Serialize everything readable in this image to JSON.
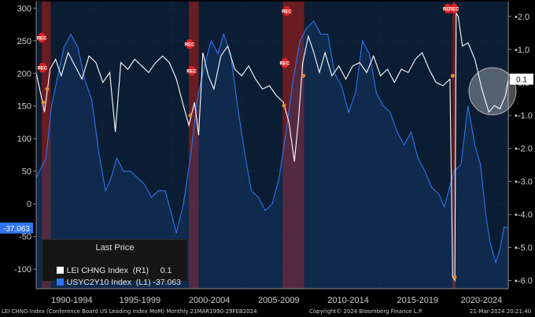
{
  "chart_data": {
    "type": "line",
    "left_axis": {
      "ticks": [
        300,
        250,
        200,
        150,
        100,
        50,
        0,
        -50,
        -100
      ],
      "ylim": [
        -130,
        310
      ]
    },
    "right_axis": {
      "ticks": [
        2.0,
        1.0,
        0.0,
        -1.0,
        -2.0,
        -3.0,
        -4.0,
        -5.0,
        -6.0
      ],
      "ylim": [
        -6.25,
        2.45
      ]
    },
    "x_period_labels": [
      "1990-1994",
      "1995-1999",
      "2000-2004",
      "2005-2009",
      "2010-2014",
      "2015-2019",
      "2020-2024"
    ],
    "x_range": [
      1990.2,
      2024.2
    ],
    "recession_bands": [
      [
        1990.6,
        1991.25
      ],
      [
        2001.2,
        2001.9
      ],
      [
        2007.95,
        2009.5
      ],
      [
        2020.17,
        2020.42
      ]
    ],
    "recession_label": "REC",
    "series": [
      {
        "name": "LEI CHNG Index (R1)",
        "axis": "right",
        "color": "#ffffff",
        "last_value": "0.1",
        "points": [
          [
            1990.2,
            0.3
          ],
          [
            1990.8,
            -0.9
          ],
          [
            1991.2,
            0.4
          ],
          [
            1991.6,
            0.7
          ],
          [
            1992.0,
            0.2
          ],
          [
            1992.5,
            0.9
          ],
          [
            1993.0,
            0.5
          ],
          [
            1993.5,
            0.1
          ],
          [
            1994.0,
            0.8
          ],
          [
            1994.5,
            0.6
          ],
          [
            1995.0,
            0.0
          ],
          [
            1995.5,
            0.3
          ],
          [
            1995.9,
            -1.5
          ],
          [
            1996.3,
            0.6
          ],
          [
            1996.8,
            0.4
          ],
          [
            1997.3,
            0.7
          ],
          [
            1997.8,
            0.5
          ],
          [
            1998.3,
            0.3
          ],
          [
            1998.8,
            0.6
          ],
          [
            1999.3,
            0.8
          ],
          [
            1999.8,
            0.6
          ],
          [
            2000.3,
            0.1
          ],
          [
            2000.8,
            -0.7
          ],
          [
            2001.2,
            -1.3
          ],
          [
            2001.6,
            -0.6
          ],
          [
            2001.9,
            -1.6
          ],
          [
            2002.2,
            0.9
          ],
          [
            2002.6,
            0.2
          ],
          [
            2003.0,
            -0.2
          ],
          [
            2003.5,
            0.8
          ],
          [
            2004.0,
            1.1
          ],
          [
            2004.5,
            0.4
          ],
          [
            2005.0,
            0.2
          ],
          [
            2005.5,
            0.5
          ],
          [
            2006.0,
            0.1
          ],
          [
            2006.5,
            -0.2
          ],
          [
            2007.0,
            -0.1
          ],
          [
            2007.5,
            -0.4
          ],
          [
            2008.0,
            -0.6
          ],
          [
            2008.4,
            -1.2
          ],
          [
            2008.8,
            -2.4
          ],
          [
            2009.1,
            -1.1
          ],
          [
            2009.4,
            0.6
          ],
          [
            2009.8,
            1.4
          ],
          [
            2010.2,
            0.9
          ],
          [
            2010.6,
            0.3
          ],
          [
            2011.0,
            0.9
          ],
          [
            2011.5,
            0.2
          ],
          [
            2012.0,
            0.5
          ],
          [
            2012.5,
            0.1
          ],
          [
            2013.0,
            0.5
          ],
          [
            2013.5,
            0.6
          ],
          [
            2014.0,
            0.3
          ],
          [
            2014.5,
            0.8
          ],
          [
            2015.0,
            0.2
          ],
          [
            2015.5,
            0.4
          ],
          [
            2016.0,
            0.0
          ],
          [
            2016.5,
            0.4
          ],
          [
            2017.0,
            0.3
          ],
          [
            2017.5,
            0.7
          ],
          [
            2018.0,
            0.9
          ],
          [
            2018.5,
            0.4
          ],
          [
            2019.0,
            0.0
          ],
          [
            2019.5,
            -0.1
          ],
          [
            2020.0,
            0.1
          ],
          [
            2020.2,
            -5.9
          ],
          [
            2020.35,
            -6.0
          ],
          [
            2020.45,
            2.1
          ],
          [
            2020.6,
            2.0
          ],
          [
            2020.9,
            1.1
          ],
          [
            2021.3,
            1.2
          ],
          [
            2021.8,
            0.7
          ],
          [
            2022.3,
            -0.2
          ],
          [
            2022.8,
            -0.9
          ],
          [
            2023.2,
            -0.7
          ],
          [
            2023.6,
            -0.8
          ],
          [
            2024.0,
            -0.4
          ],
          [
            2024.2,
            0.1
          ]
        ]
      },
      {
        "name": "USYC2Y10 Index (L1)",
        "axis": "left",
        "color": "#2f74f0",
        "last_value": "-37.063",
        "points": [
          [
            1990.2,
            40
          ],
          [
            1990.9,
            70
          ],
          [
            1991.3,
            150
          ],
          [
            1991.8,
            200
          ],
          [
            1992.2,
            240
          ],
          [
            1992.7,
            260
          ],
          [
            1993.2,
            240
          ],
          [
            1993.7,
            190
          ],
          [
            1994.2,
            160
          ],
          [
            1994.7,
            80
          ],
          [
            1995.2,
            20
          ],
          [
            1995.6,
            40
          ],
          [
            1996.0,
            70
          ],
          [
            1996.5,
            50
          ],
          [
            1997.0,
            50
          ],
          [
            1997.5,
            40
          ],
          [
            1998.0,
            30
          ],
          [
            1998.5,
            10
          ],
          [
            1999.0,
            20
          ],
          [
            1999.5,
            20
          ],
          [
            2000.0,
            -20
          ],
          [
            2000.3,
            -45
          ],
          [
            2000.8,
            0
          ],
          [
            2001.3,
            70
          ],
          [
            2001.8,
            160
          ],
          [
            2002.3,
            210
          ],
          [
            2002.8,
            250
          ],
          [
            2003.3,
            230
          ],
          [
            2003.7,
            260
          ],
          [
            2004.2,
            230
          ],
          [
            2004.7,
            150
          ],
          [
            2005.2,
            80
          ],
          [
            2005.7,
            20
          ],
          [
            2006.2,
            10
          ],
          [
            2006.7,
            -10
          ],
          [
            2007.2,
            0
          ],
          [
            2007.7,
            40
          ],
          [
            2008.2,
            110
          ],
          [
            2008.7,
            190
          ],
          [
            2009.2,
            250
          ],
          [
            2009.7,
            270
          ],
          [
            2010.2,
            280
          ],
          [
            2010.7,
            260
          ],
          [
            2011.2,
            260
          ],
          [
            2011.7,
            200
          ],
          [
            2012.2,
            180
          ],
          [
            2012.7,
            140
          ],
          [
            2013.2,
            170
          ],
          [
            2013.7,
            250
          ],
          [
            2014.2,
            230
          ],
          [
            2014.7,
            170
          ],
          [
            2015.2,
            150
          ],
          [
            2015.7,
            140
          ],
          [
            2016.2,
            110
          ],
          [
            2016.7,
            90
          ],
          [
            2017.2,
            110
          ],
          [
            2017.7,
            70
          ],
          [
            2018.2,
            50
          ],
          [
            2018.7,
            25
          ],
          [
            2019.2,
            15
          ],
          [
            2019.6,
            -5
          ],
          [
            2019.9,
            20
          ],
          [
            2020.3,
            50
          ],
          [
            2020.8,
            60
          ],
          [
            2021.3,
            150
          ],
          [
            2021.8,
            90
          ],
          [
            2022.2,
            60
          ],
          [
            2022.6,
            -20
          ],
          [
            2022.9,
            -60
          ],
          [
            2023.3,
            -90
          ],
          [
            2023.6,
            -70
          ],
          [
            2023.9,
            -35
          ],
          [
            2024.2,
            -37.063
          ]
        ]
      }
    ],
    "legend": {
      "title": "Last Price",
      "placement": "bottom-left"
    }
  },
  "footer": {
    "left": "LEI CHNG Index (Conference Board US Leading Index MoM)  Monthly 21MAR1990-29FEB2024",
    "center": "Copyright© 2024 Bloomberg Finance L.P.",
    "right": "21-Mar-2024 20:21:40"
  },
  "legend": {
    "title": "Last Price",
    "row1": "LEI CHNG Index  (R1)     0.1",
    "row2": "USYC2Y10 Index  (L1) -37.063"
  },
  "colors": {
    "lei": "#ffffff",
    "yc": "#2f74f0",
    "bg": "#000000",
    "plot_bg": "#0b1d33",
    "rec": "#8a1c1c"
  }
}
